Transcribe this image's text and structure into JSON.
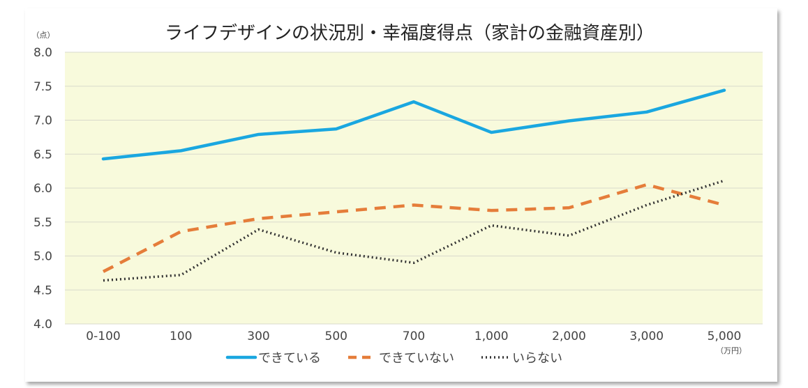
{
  "chart_data": {
    "type": "line",
    "title": "ライフデザインの状況別・幸福度得点（家計の金融資産別）",
    "y_unit": "（点）",
    "x_unit": "（万円）",
    "categories": [
      "0-100",
      "100",
      "300",
      "500",
      "700",
      "1,000",
      "2,000",
      "3,000",
      "5,000"
    ],
    "y_ticks": [
      "4.0",
      "4.5",
      "5.0",
      "5.5",
      "6.0",
      "6.5",
      "7.0",
      "7.5",
      "8.0"
    ],
    "ylim": [
      4.0,
      8.0
    ],
    "grid": true,
    "legend": "bottom",
    "series": [
      {
        "name": "できている",
        "color": "#1aa7e0",
        "style": "solid",
        "values": [
          6.43,
          6.55,
          6.79,
          6.87,
          7.27,
          6.82,
          6.99,
          7.12,
          7.44
        ]
      },
      {
        "name": "できていない",
        "color": "#e57d3a",
        "style": "dashed",
        "values": [
          4.77,
          5.36,
          5.55,
          5.65,
          5.75,
          5.67,
          5.71,
          6.05,
          5.75
        ]
      },
      {
        "name": "いらない",
        "color": "#333333",
        "style": "dotted",
        "values": [
          4.64,
          4.72,
          5.39,
          5.05,
          4.9,
          5.45,
          5.3,
          5.75,
          6.11
        ]
      }
    ]
  }
}
